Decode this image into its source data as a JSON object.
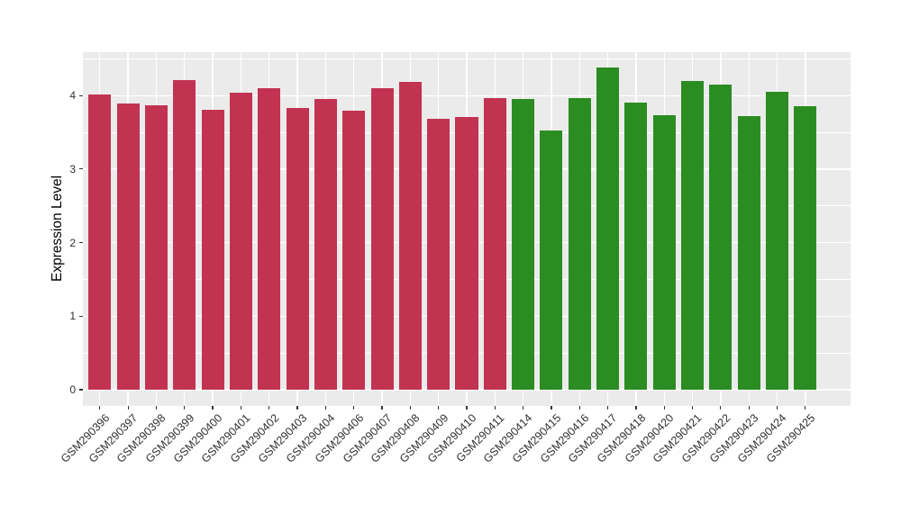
{
  "chart_data": {
    "type": "bar",
    "title": "",
    "xlabel": "",
    "ylabel": "Expression Level",
    "categories": [
      "GSM290396",
      "GSM290397",
      "GSM290398",
      "GSM290399",
      "GSM290400",
      "GSM290401",
      "GSM290402",
      "GSM290403",
      "GSM290404",
      "GSM290406",
      "GSM290407",
      "GSM290408",
      "GSM290409",
      "GSM290410",
      "GSM290411",
      "GSM290414",
      "GSM290415",
      "GSM290416",
      "GSM290417",
      "GSM290418",
      "GSM290420",
      "GSM290421",
      "GSM290422",
      "GSM290423",
      "GSM290424",
      "GSM290425"
    ],
    "values": [
      4.02,
      3.89,
      3.87,
      4.21,
      3.81,
      4.04,
      4.1,
      3.83,
      3.95,
      3.79,
      4.1,
      4.18,
      3.69,
      3.71,
      3.96,
      3.95,
      3.53,
      3.96,
      4.38,
      3.91,
      3.73,
      4.2,
      4.15,
      3.72,
      4.05,
      3.85
    ],
    "bar_groups": [
      "group1",
      "group1",
      "group1",
      "group1",
      "group1",
      "group1",
      "group1",
      "group1",
      "group1",
      "group1",
      "group1",
      "group1",
      "group1",
      "group1",
      "group1",
      "group2",
      "group2",
      "group2",
      "group2",
      "group2",
      "group2",
      "group2",
      "group2",
      "group2",
      "group2",
      "group2"
    ],
    "group_colors": {
      "group1": "#C23352",
      "group2": "#2B8C21"
    },
    "y_ticks": [
      "0",
      "1",
      "2",
      "3",
      "4"
    ],
    "y_tick_values": [
      0,
      1,
      2,
      3,
      4
    ],
    "y_minor_tick_values": [
      0.5,
      1.5,
      2.5,
      3.5,
      4.5
    ],
    "ylim": [
      -0.22,
      4.59
    ],
    "bar_width_fraction": 0.8,
    "legend_position": "none",
    "grid": true,
    "panel_background": "#EBEBEB",
    "grid_color": "#FFFFFF",
    "tick_color": "#333333",
    "axis_text_color": "#303030"
  }
}
